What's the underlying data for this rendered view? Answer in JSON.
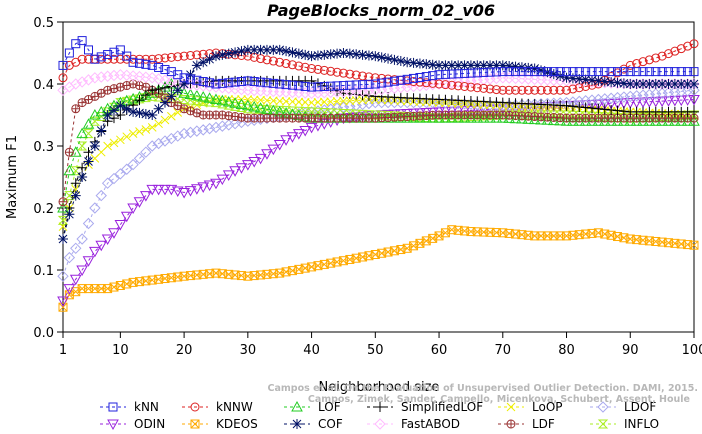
{
  "chart_data": {
    "type": "line",
    "title": "PageBlocks_norm_02_v06",
    "xlabel": "Neighborhood size",
    "ylabel": "Maximum F1",
    "xlim": [
      1,
      100
    ],
    "ylim": [
      0.0,
      0.5
    ],
    "xticks": [
      1,
      10,
      20,
      30,
      40,
      50,
      60,
      70,
      80,
      90,
      100
    ],
    "yticks": [
      0.0,
      0.1,
      0.2,
      0.3,
      0.4,
      0.5
    ],
    "ytick_labels": [
      "0.0",
      "0.1",
      "0.2",
      "0.3",
      "0.4",
      "0.5"
    ],
    "grid": false,
    "legend_position": "bottom",
    "credit": [
      "Campos et al. On the Evaluation of Unsupervised Outlier Detection. DAMI, 2015.",
      "Campos, Zimek, Sander, Campello, Micenkova, Schubert, Assent, Houle"
    ],
    "series": [
      {
        "name": "kNN",
        "color": "#2222dd",
        "marker": "square",
        "anchors": [
          [
            1,
            0.43
          ],
          [
            2,
            0.45
          ],
          [
            3,
            0.465
          ],
          [
            4,
            0.47
          ],
          [
            6,
            0.44
          ],
          [
            10,
            0.455
          ],
          [
            12,
            0.435
          ],
          [
            15,
            0.43
          ],
          [
            18,
            0.42
          ],
          [
            20,
            0.41
          ],
          [
            25,
            0.4
          ],
          [
            30,
            0.405
          ],
          [
            40,
            0.395
          ],
          [
            50,
            0.4
          ],
          [
            60,
            0.415
          ],
          [
            70,
            0.42
          ],
          [
            80,
            0.42
          ],
          [
            90,
            0.42
          ],
          [
            100,
            0.42
          ]
        ]
      },
      {
        "name": "kNNW",
        "color": "#dd2222",
        "marker": "circle",
        "anchors": [
          [
            1,
            0.41
          ],
          [
            2,
            0.43
          ],
          [
            4,
            0.44
          ],
          [
            8,
            0.44
          ],
          [
            15,
            0.44
          ],
          [
            20,
            0.445
          ],
          [
            25,
            0.45
          ],
          [
            30,
            0.445
          ],
          [
            40,
            0.425
          ],
          [
            50,
            0.41
          ],
          [
            60,
            0.4
          ],
          [
            70,
            0.39
          ],
          [
            80,
            0.39
          ],
          [
            85,
            0.4
          ],
          [
            90,
            0.43
          ],
          [
            95,
            0.445
          ],
          [
            100,
            0.465
          ]
        ]
      },
      {
        "name": "LOF",
        "color": "#22cc22",
        "marker": "triangle-up",
        "anchors": [
          [
            1,
            0.2
          ],
          [
            2,
            0.26
          ],
          [
            4,
            0.32
          ],
          [
            6,
            0.35
          ],
          [
            10,
            0.37
          ],
          [
            15,
            0.385
          ],
          [
            18,
            0.4
          ],
          [
            20,
            0.385
          ],
          [
            25,
            0.375
          ],
          [
            30,
            0.365
          ],
          [
            35,
            0.355
          ],
          [
            40,
            0.345
          ],
          [
            50,
            0.345
          ],
          [
            60,
            0.345
          ],
          [
            70,
            0.345
          ],
          [
            80,
            0.34
          ],
          [
            90,
            0.34
          ],
          [
            100,
            0.34
          ]
        ]
      },
      {
        "name": "SimplifiedLOF",
        "color": "#000000",
        "marker": "plus",
        "anchors": [
          [
            1,
            0.15
          ],
          [
            2,
            0.2
          ],
          [
            3,
            0.24
          ],
          [
            5,
            0.29
          ],
          [
            8,
            0.34
          ],
          [
            10,
            0.35
          ],
          [
            15,
            0.39
          ],
          [
            20,
            0.4
          ],
          [
            25,
            0.405
          ],
          [
            30,
            0.405
          ],
          [
            40,
            0.405
          ],
          [
            45,
            0.385
          ],
          [
            50,
            0.38
          ],
          [
            60,
            0.375
          ],
          [
            70,
            0.37
          ],
          [
            80,
            0.365
          ],
          [
            90,
            0.355
          ],
          [
            100,
            0.355
          ]
        ]
      },
      {
        "name": "LoOP",
        "color": "#eeee00",
        "marker": "x",
        "anchors": [
          [
            1,
            0.17
          ],
          [
            3,
            0.23
          ],
          [
            5,
            0.27
          ],
          [
            8,
            0.3
          ],
          [
            12,
            0.32
          ],
          [
            15,
            0.33
          ],
          [
            20,
            0.36
          ],
          [
            25,
            0.375
          ],
          [
            30,
            0.375
          ],
          [
            40,
            0.37
          ],
          [
            50,
            0.375
          ],
          [
            60,
            0.37
          ],
          [
            70,
            0.365
          ],
          [
            80,
            0.36
          ],
          [
            90,
            0.355
          ],
          [
            100,
            0.35
          ]
        ]
      },
      {
        "name": "LDOF",
        "color": "#aaaaee",
        "marker": "diamond",
        "anchors": [
          [
            1,
            0.09
          ],
          [
            2,
            0.12
          ],
          [
            4,
            0.15
          ],
          [
            6,
            0.2
          ],
          [
            8,
            0.24
          ],
          [
            12,
            0.27
          ],
          [
            15,
            0.3
          ],
          [
            20,
            0.32
          ],
          [
            25,
            0.33
          ],
          [
            30,
            0.34
          ],
          [
            40,
            0.355
          ],
          [
            50,
            0.37
          ],
          [
            60,
            0.37
          ],
          [
            70,
            0.365
          ],
          [
            80,
            0.37
          ],
          [
            90,
            0.38
          ],
          [
            100,
            0.39
          ]
        ]
      },
      {
        "name": "ODIN",
        "color": "#9922dd",
        "marker": "triangle-down",
        "anchors": [
          [
            1,
            0.05
          ],
          [
            2,
            0.07
          ],
          [
            4,
            0.1
          ],
          [
            6,
            0.13
          ],
          [
            9,
            0.16
          ],
          [
            12,
            0.2
          ],
          [
            15,
            0.23
          ],
          [
            18,
            0.23
          ],
          [
            20,
            0.225
          ],
          [
            25,
            0.24
          ],
          [
            28,
            0.26
          ],
          [
            32,
            0.28
          ],
          [
            36,
            0.31
          ],
          [
            40,
            0.33
          ],
          [
            45,
            0.345
          ],
          [
            50,
            0.35
          ],
          [
            60,
            0.355
          ],
          [
            70,
            0.36
          ],
          [
            80,
            0.365
          ],
          [
            90,
            0.37
          ],
          [
            100,
            0.375
          ]
        ]
      },
      {
        "name": "KDEOS",
        "color": "#ffaa00",
        "marker": "square-x",
        "anchors": [
          [
            1,
            0.04
          ],
          [
            2,
            0.06
          ],
          [
            4,
            0.07
          ],
          [
            8,
            0.07
          ],
          [
            12,
            0.08
          ],
          [
            16,
            0.085
          ],
          [
            20,
            0.09
          ],
          [
            25,
            0.095
          ],
          [
            30,
            0.09
          ],
          [
            35,
            0.095
          ],
          [
            40,
            0.105
          ],
          [
            45,
            0.115
          ],
          [
            50,
            0.125
          ],
          [
            55,
            0.135
          ],
          [
            60,
            0.155
          ],
          [
            62,
            0.165
          ],
          [
            65,
            0.162
          ],
          [
            70,
            0.16
          ],
          [
            75,
            0.155
          ],
          [
            80,
            0.155
          ],
          [
            85,
            0.16
          ],
          [
            90,
            0.15
          ],
          [
            95,
            0.145
          ],
          [
            100,
            0.14
          ]
        ]
      },
      {
        "name": "COF",
        "color": "#001166",
        "marker": "asterisk",
        "anchors": [
          [
            1,
            0.15
          ],
          [
            2,
            0.19
          ],
          [
            4,
            0.25
          ],
          [
            6,
            0.3
          ],
          [
            8,
            0.35
          ],
          [
            10,
            0.365
          ],
          [
            12,
            0.355
          ],
          [
            15,
            0.35
          ],
          [
            18,
            0.38
          ],
          [
            20,
            0.4
          ],
          [
            22,
            0.43
          ],
          [
            25,
            0.445
          ],
          [
            30,
            0.455
          ],
          [
            35,
            0.455
          ],
          [
            40,
            0.445
          ],
          [
            45,
            0.45
          ],
          [
            50,
            0.445
          ],
          [
            55,
            0.435
          ],
          [
            60,
            0.43
          ],
          [
            65,
            0.43
          ],
          [
            70,
            0.43
          ],
          [
            75,
            0.425
          ],
          [
            80,
            0.41
          ],
          [
            85,
            0.405
          ],
          [
            90,
            0.4
          ],
          [
            95,
            0.4
          ],
          [
            100,
            0.4
          ]
        ]
      },
      {
        "name": "FastABOD",
        "color": "#ffbbff",
        "marker": "diamond",
        "anchors": [
          [
            1,
            0.39
          ],
          [
            3,
            0.4
          ],
          [
            6,
            0.41
          ],
          [
            10,
            0.415
          ],
          [
            15,
            0.41
          ],
          [
            20,
            0.4
          ],
          [
            30,
            0.39
          ],
          [
            40,
            0.385
          ],
          [
            50,
            0.39
          ],
          [
            60,
            0.4
          ],
          [
            70,
            0.41
          ],
          [
            80,
            0.405
          ],
          [
            90,
            0.4
          ],
          [
            100,
            0.4
          ]
        ]
      },
      {
        "name": "LDF",
        "color": "#993333",
        "marker": "circle-plus",
        "anchors": [
          [
            1,
            0.21
          ],
          [
            2,
            0.29
          ],
          [
            3,
            0.36
          ],
          [
            4,
            0.37
          ],
          [
            6,
            0.38
          ],
          [
            8,
            0.39
          ],
          [
            10,
            0.395
          ],
          [
            12,
            0.4
          ],
          [
            14,
            0.395
          ],
          [
            16,
            0.385
          ],
          [
            18,
            0.37
          ],
          [
            20,
            0.36
          ],
          [
            23,
            0.35
          ],
          [
            26,
            0.35
          ],
          [
            30,
            0.345
          ],
          [
            40,
            0.345
          ],
          [
            50,
            0.345
          ],
          [
            60,
            0.35
          ],
          [
            70,
            0.35
          ],
          [
            80,
            0.345
          ],
          [
            90,
            0.345
          ],
          [
            100,
            0.345
          ]
        ]
      },
      {
        "name": "INFLO",
        "color": "#aaee22",
        "marker": "hourglass",
        "anchors": [
          [
            1,
            0.18
          ],
          [
            2,
            0.22
          ],
          [
            4,
            0.3
          ],
          [
            6,
            0.34
          ],
          [
            10,
            0.37
          ],
          [
            15,
            0.38
          ],
          [
            20,
            0.375
          ],
          [
            25,
            0.37
          ],
          [
            30,
            0.36
          ],
          [
            40,
            0.355
          ],
          [
            50,
            0.35
          ],
          [
            60,
            0.345
          ],
          [
            70,
            0.35
          ],
          [
            80,
            0.35
          ],
          [
            90,
            0.345
          ],
          [
            100,
            0.35
          ]
        ]
      }
    ]
  }
}
